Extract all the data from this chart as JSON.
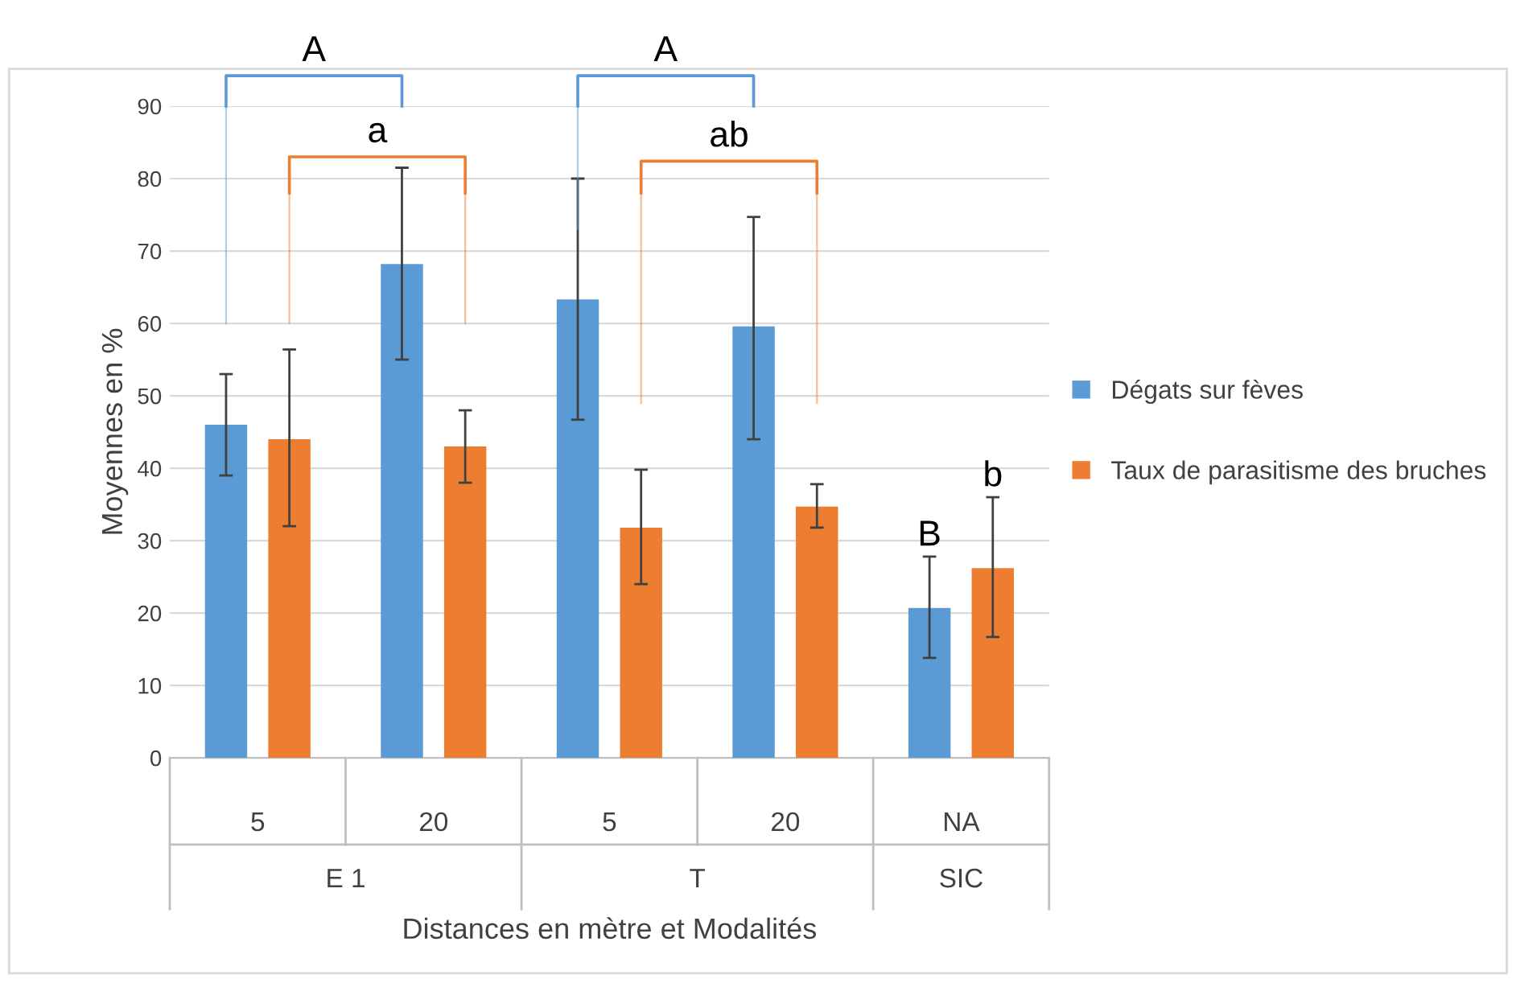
{
  "chart_data": {
    "type": "bar",
    "xlabel": "Distances en mètre et Modalités",
    "ylabel": "Moyennes en %",
    "categories": [
      "5",
      "20",
      "5",
      "20",
      "NA"
    ],
    "series": [
      {
        "name": "Dégats sur fèves",
        "color": "#5b9bd5",
        "values": [
          46,
          68.2,
          63.3,
          59.6,
          20.7
        ],
        "errors": [
          [
            39,
            53
          ],
          [
            55,
            81.5
          ],
          [
            46.7,
            80
          ],
          [
            44,
            74.7
          ],
          [
            13.8,
            27.8
          ]
        ]
      },
      {
        "name": "Taux de parasitisme des bruches",
        "color": "#ed7d31",
        "values": [
          44,
          43,
          31.8,
          34.7,
          26.2
        ],
        "errors": [
          [
            32,
            56.4
          ],
          [
            38,
            48
          ],
          [
            24,
            39.8
          ],
          [
            31.8,
            37.8
          ],
          [
            16.7,
            36
          ]
        ]
      }
    ],
    "ylim": [
      0,
      90
    ],
    "yticks": [
      0,
      10,
      20,
      30,
      40,
      50,
      60,
      70,
      80,
      90
    ],
    "grid": "y",
    "legend": "right",
    "annotations": [
      "A",
      "a",
      "A",
      "ab",
      "B",
      "b",
      "E 1",
      "T",
      "SIC"
    ]
  }
}
